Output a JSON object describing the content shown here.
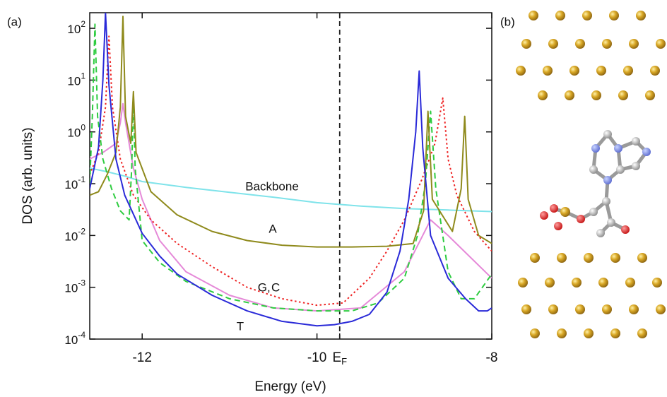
{
  "panel_labels": [
    "(a)",
    "(b)"
  ],
  "chart_data": {
    "type": "line",
    "xlabel": "Energy (eV)",
    "ylabel": "DOS (arb. units)",
    "xlim": [
      -12.6,
      -8
    ],
    "ylim": [
      0.0001,
      200
    ],
    "log_y": true,
    "xticks": [
      -12,
      -10,
      {
        "value": -9.74,
        "label": "E",
        "subscript": "F"
      },
      -8
    ],
    "yticks": [
      {
        "value": 0.0001,
        "label": "10",
        "exponent": "-4"
      },
      {
        "value": 0.001,
        "label": "10",
        "exponent": "-3"
      },
      {
        "value": 0.01,
        "label": "10",
        "exponent": "-2"
      },
      {
        "value": 0.1,
        "label": "10",
        "exponent": "-1"
      },
      {
        "value": 1,
        "label": "10",
        "exponent": "0"
      },
      {
        "value": 10,
        "label": "10",
        "exponent": "1"
      },
      {
        "value": 100,
        "label": "10",
        "exponent": "2"
      }
    ],
    "vline": -9.74,
    "annotations": [
      {
        "text": "Backbone",
        "color": "#111111"
      },
      {
        "text": "A",
        "color": "#8f8a1c"
      },
      {
        "text": "G",
        "color": "#2ecc40"
      },
      {
        "text": ",",
        "color": "#111111"
      },
      {
        "text": "C",
        "color": "#ee2222"
      },
      {
        "text": "T",
        "color": "#2a2ad8"
      }
    ],
    "series": [
      {
        "name": "Backbone",
        "color": "#7fe3ea",
        "dash": "solid",
        "x": [
          -12.6,
          -12.4,
          -12.2,
          -12,
          -11.5,
          -11,
          -10.5,
          -10,
          -9.5,
          -9,
          -8.5,
          -8
        ],
        "values": [
          0.2,
          0.17,
          0.14,
          0.11,
          0.085,
          0.068,
          0.055,
          0.043,
          0.037,
          0.033,
          0.031,
          0.029
        ]
      },
      {
        "color": "#e589d8",
        "dash": "solid",
        "x": [
          -12.6,
          -12.45,
          -12.3,
          -12.25,
          -12.22,
          -12.19,
          -12.1,
          -12,
          -11.8,
          -11.5,
          -11,
          -10.5,
          -10,
          -9.5,
          -9,
          -8.7,
          -8.5,
          -8
        ],
        "values": [
          0.3,
          0.4,
          0.6,
          1.5,
          3.5,
          1.5,
          0.2,
          0.05,
          0.008,
          0.002,
          0.0007,
          0.0004,
          0.00035,
          0.0004,
          0.002,
          0.02,
          0.01,
          0.0015
        ]
      },
      {
        "name": "C",
        "color": "#ee2222",
        "dash": "dotted",
        "x": [
          -12.6,
          -12.5,
          -12.42,
          -12.38,
          -12.34,
          -12.25,
          -12.1,
          -11.9,
          -11.6,
          -11.2,
          -10.8,
          -10.4,
          -10,
          -9.7,
          -9.4,
          -9.2,
          -9,
          -8.8,
          -8.65,
          -8.56,
          -8.5,
          -8.4,
          -8.2,
          -8
        ],
        "values": [
          0.15,
          0.4,
          3,
          70,
          3,
          0.3,
          0.06,
          0.02,
          0.007,
          0.0025,
          0.001,
          0.0006,
          0.00045,
          0.0005,
          0.0015,
          0.005,
          0.02,
          0.12,
          0.6,
          4.5,
          0.3,
          0.06,
          0.012,
          0.005
        ]
      },
      {
        "name": "G",
        "color": "#2ecc40",
        "dash": "dashed",
        "x": [
          -12.6,
          -12.57,
          -12.54,
          -12.51,
          -12.45,
          -12.35,
          -12.25,
          -12.15,
          -12.12,
          -12.1,
          -12.08,
          -12,
          -11.8,
          -11.5,
          -11,
          -10.5,
          -10,
          -9.6,
          -9.3,
          -9,
          -8.85,
          -8.76,
          -8.7,
          -8.64,
          -8.5,
          -8.35,
          -8.2,
          -8
        ],
        "values": [
          0.1,
          2,
          120,
          2,
          0.3,
          0.08,
          0.03,
          0.02,
          0.2,
          5,
          0.2,
          0.008,
          0.003,
          0.0013,
          0.0006,
          0.0004,
          0.00035,
          0.00035,
          0.0005,
          0.0015,
          0.01,
          0.1,
          2.5,
          0.08,
          0.002,
          0.0006,
          0.0006,
          0.0018
        ]
      },
      {
        "name": "A",
        "color": "#8f8a1c",
        "dash": "solid",
        "x": [
          -12.6,
          -12.5,
          -12.4,
          -12.3,
          -12.25,
          -12.22,
          -12.19,
          -12.13,
          -12.1,
          -12.07,
          -11.9,
          -11.6,
          -11.2,
          -10.8,
          -10.4,
          -10,
          -9.6,
          -9.2,
          -8.9,
          -8.78,
          -8.73,
          -8.68,
          -8.45,
          -8.35,
          -8.31,
          -8.27,
          -8.15,
          -8
        ],
        "values": [
          0.06,
          0.07,
          0.15,
          0.4,
          3,
          170,
          2,
          0.6,
          6,
          0.4,
          0.07,
          0.025,
          0.012,
          0.008,
          0.0065,
          0.006,
          0.006,
          0.0062,
          0.007,
          0.03,
          2.5,
          0.05,
          0.012,
          0.08,
          2,
          0.05,
          0.01,
          0.007
        ]
      },
      {
        "name": "T",
        "color": "#2a2ad8",
        "dash": "solid",
        "x": [
          -12.6,
          -12.5,
          -12.45,
          -12.42,
          -12.38,
          -12.3,
          -12.2,
          -12,
          -11.8,
          -11.6,
          -11.2,
          -10.8,
          -10.4,
          -10,
          -9.8,
          -9.6,
          -9.4,
          -9.2,
          -9.05,
          -8.95,
          -8.87,
          -8.83,
          -8.79,
          -8.7,
          -8.5,
          -8.3,
          -8.15,
          -8.05,
          -8
        ],
        "values": [
          0.08,
          0.5,
          10,
          200,
          8,
          0.3,
          0.06,
          0.011,
          0.004,
          0.0018,
          0.0007,
          0.00035,
          0.00022,
          0.00018,
          0.00019,
          0.00022,
          0.0003,
          0.0008,
          0.005,
          0.05,
          1,
          15,
          0.5,
          0.01,
          0.0015,
          0.0006,
          0.00035,
          0.00035,
          0.0004
        ]
      }
    ]
  }
}
